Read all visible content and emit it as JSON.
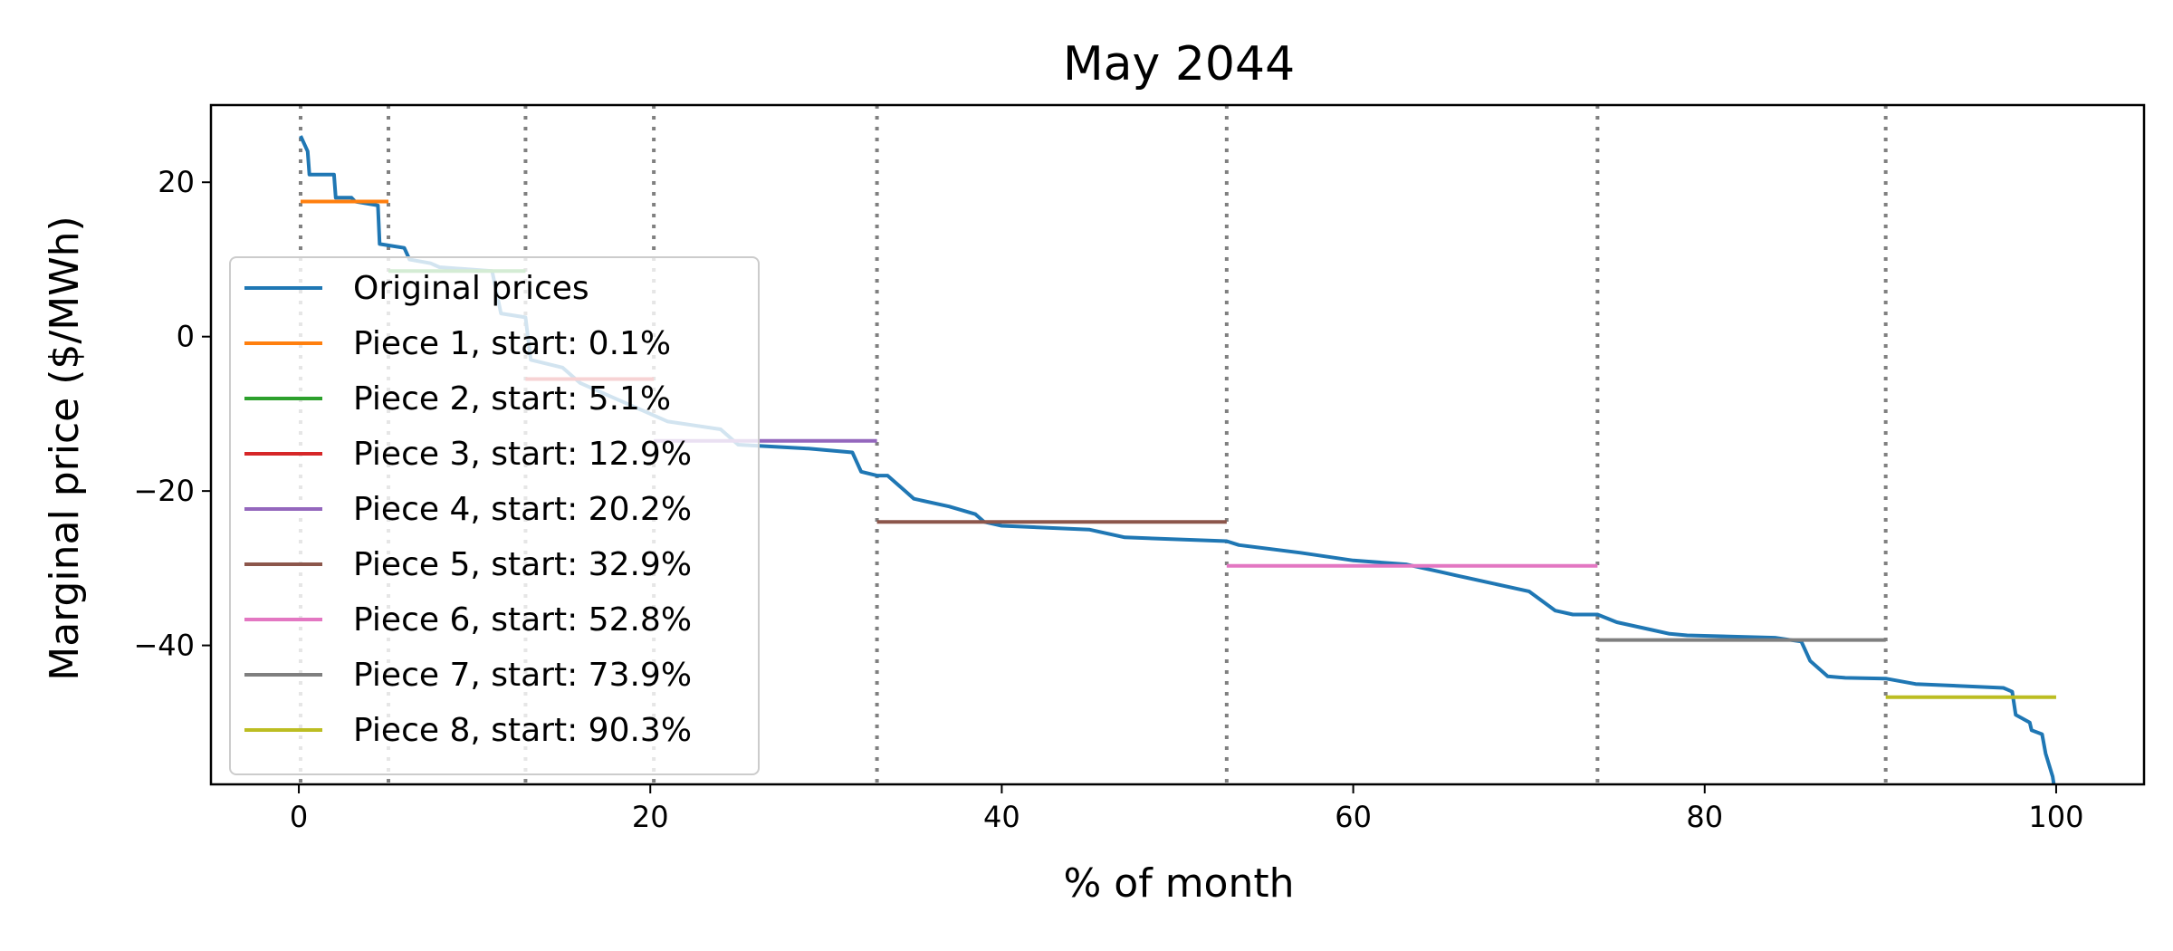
{
  "chart_data": {
    "type": "line",
    "title": "May 2044",
    "xlabel": "% of month",
    "ylabel": "Marginal price ($/MWh)",
    "xlim": [
      -5,
      105
    ],
    "ylim": [
      -58,
      30
    ],
    "xticks": [
      0,
      20,
      40,
      60,
      80,
      100
    ],
    "yticks": [
      20,
      0,
      -20,
      -40
    ],
    "grid": false,
    "legend_position": "lower-left",
    "original": {
      "name": "Original prices",
      "color": "#1f77b4",
      "x": [
        0.1,
        0.5,
        0.6,
        2.0,
        2.1,
        3.0,
        3.2,
        4.5,
        4.6,
        6.0,
        6.3,
        7.5,
        8.0,
        11.0,
        11.5,
        12.9,
        13.2,
        15.0,
        16.0,
        18.0,
        20.0,
        21.0,
        24.0,
        25.0,
        29.0,
        31.5,
        32.0,
        32.9,
        33.5,
        34.5,
        35.0,
        37.0,
        38.5,
        39.0,
        40.0,
        45.0,
        47.0,
        52.8,
        53.5,
        57.0,
        60.0,
        63.0,
        65.0,
        66.0,
        68.0,
        70.0,
        71.5,
        72.5,
        73.9,
        75.0,
        77.0,
        78.0,
        79.0,
        84.0,
        85.5,
        86.0,
        87.0,
        88.0,
        90.3,
        92.0,
        97.0,
        97.5,
        97.7,
        98.5,
        98.6,
        99.2,
        99.4,
        99.8,
        100.0
      ],
      "y": [
        26.0,
        24.0,
        21.0,
        21.0,
        18.0,
        18.0,
        17.5,
        17.0,
        12.0,
        11.5,
        10.0,
        9.5,
        9.0,
        8.5,
        3.0,
        2.5,
        -3.0,
        -4.0,
        -6.0,
        -8.0,
        -10.0,
        -11.0,
        -12.0,
        -14.0,
        -14.5,
        -15.0,
        -17.5,
        -18.0,
        -18.0,
        -20.0,
        -21.0,
        -22.0,
        -23.0,
        -24.0,
        -24.5,
        -25.0,
        -26.0,
        -26.5,
        -27.0,
        -28.0,
        -29.0,
        -29.5,
        -30.5,
        -31.0,
        -32.0,
        -33.0,
        -35.5,
        -36.0,
        -36.0,
        -37.0,
        -38.0,
        -38.5,
        -38.7,
        -39.0,
        -39.5,
        -42.0,
        -44.0,
        -44.2,
        -44.3,
        -45.0,
        -45.5,
        -46.0,
        -49.0,
        -50.0,
        -51.0,
        -51.5,
        -54.0,
        -57.0,
        -60.0
      ]
    },
    "pieces": [
      {
        "name": "Piece 1, start: 0.1%",
        "color": "#ff7f0e",
        "x_start": 0.1,
        "x_end": 5.1,
        "y": 17.5
      },
      {
        "name": "Piece 2, start: 5.1%",
        "color": "#2ca02c",
        "x_start": 5.1,
        "x_end": 12.9,
        "y": 8.5
      },
      {
        "name": "Piece 3, start: 12.9%",
        "color": "#d62728",
        "x_start": 12.9,
        "x_end": 20.2,
        "y": -5.5
      },
      {
        "name": "Piece 4, start: 20.2%",
        "color": "#9467bd",
        "x_start": 20.2,
        "x_end": 32.9,
        "y": -13.5
      },
      {
        "name": "Piece 5, start: 32.9%",
        "color": "#8c564b",
        "x_start": 32.9,
        "x_end": 52.8,
        "y": -24.0
      },
      {
        "name": "Piece 6, start: 52.8%",
        "color": "#e377c2",
        "x_start": 52.8,
        "x_end": 73.9,
        "y": -29.7
      },
      {
        "name": "Piece 7, start: 73.9%",
        "color": "#7f7f7f",
        "x_start": 73.9,
        "x_end": 90.3,
        "y": -39.3
      },
      {
        "name": "Piece 8, start: 90.3%",
        "color": "#bcbd22",
        "x_start": 90.3,
        "x_end": 100.0,
        "y": -46.7
      }
    ],
    "breakpoints": [
      0.1,
      5.1,
      12.9,
      20.2,
      32.9,
      52.8,
      73.9,
      90.3
    ],
    "breakpoint_color": "#808080"
  }
}
